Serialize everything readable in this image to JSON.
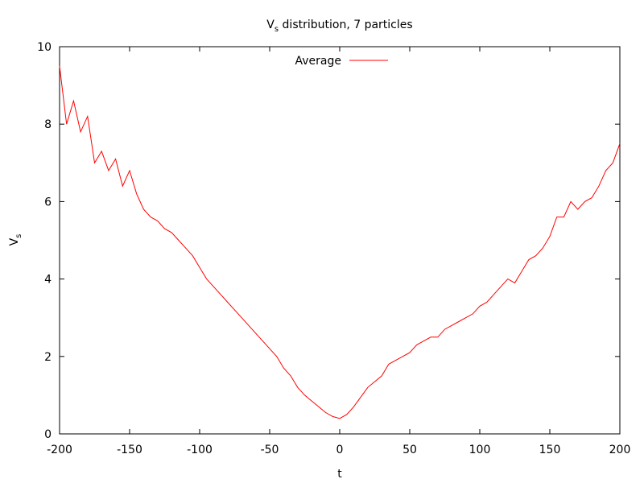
{
  "chart_data": {
    "type": "line",
    "title": {
      "main": "V",
      "subscript": "s",
      "rest": " distribution, 7 particles"
    },
    "xlabel": "t",
    "ylabel": {
      "main": "V",
      "subscript": "s"
    },
    "xlim": [
      -200,
      200
    ],
    "ylim": [
      0,
      10
    ],
    "x_ticks": [
      -200,
      -150,
      -100,
      -50,
      0,
      50,
      100,
      150,
      200
    ],
    "y_ticks": [
      0,
      2,
      4,
      6,
      8,
      10
    ],
    "x_tick_labels": [
      "-200",
      "-150",
      "-100",
      "-50",
      "0",
      "50",
      "100",
      "150",
      "200"
    ],
    "y_tick_labels": [
      "0",
      "2",
      "4",
      "6",
      "8",
      "10"
    ],
    "grid": false,
    "legend_position": "top-center",
    "series": [
      {
        "name": "Average",
        "color": "#ff0000",
        "x": [
          -200,
          -195,
          -190,
          -185,
          -180,
          -175,
          -170,
          -165,
          -160,
          -155,
          -150,
          -145,
          -140,
          -135,
          -130,
          -125,
          -120,
          -115,
          -110,
          -105,
          -100,
          -95,
          -90,
          -85,
          -80,
          -75,
          -70,
          -65,
          -60,
          -55,
          -50,
          -45,
          -40,
          -35,
          -30,
          -25,
          -20,
          -15,
          -10,
          -5,
          0,
          5,
          10,
          15,
          20,
          25,
          30,
          35,
          40,
          45,
          50,
          55,
          60,
          65,
          70,
          75,
          80,
          85,
          90,
          95,
          100,
          105,
          110,
          115,
          120,
          125,
          130,
          135,
          140,
          145,
          150,
          155,
          160,
          165,
          170,
          175,
          180,
          185,
          190,
          195,
          200
        ],
        "y": [
          9.5,
          8.0,
          8.6,
          7.8,
          8.2,
          7.0,
          7.3,
          6.8,
          7.1,
          6.4,
          6.8,
          6.2,
          5.8,
          5.6,
          5.5,
          5.3,
          5.2,
          5.0,
          4.8,
          4.6,
          4.3,
          4.0,
          3.8,
          3.6,
          3.4,
          3.2,
          3.0,
          2.8,
          2.6,
          2.4,
          2.2,
          2.0,
          1.7,
          1.5,
          1.2,
          1.0,
          0.85,
          0.7,
          0.55,
          0.45,
          0.4,
          0.5,
          0.7,
          0.95,
          1.2,
          1.35,
          1.5,
          1.8,
          1.9,
          2.0,
          2.1,
          2.3,
          2.4,
          2.5,
          2.5,
          2.7,
          2.8,
          2.9,
          3.0,
          3.1,
          3.3,
          3.4,
          3.6,
          3.8,
          4.0,
          3.9,
          4.2,
          4.5,
          4.6,
          4.8,
          5.1,
          5.6,
          5.6,
          6.0,
          5.8,
          6.0,
          6.1,
          6.4,
          6.8,
          7.0,
          7.5
        ]
      }
    ]
  }
}
